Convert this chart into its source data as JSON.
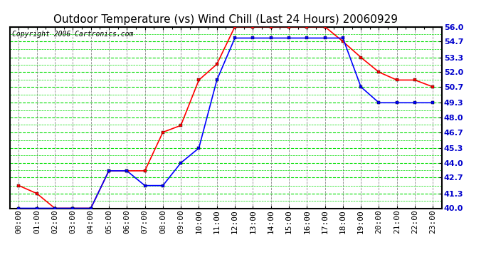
{
  "title": "Outdoor Temperature (vs) Wind Chill (Last 24 Hours) 20060929",
  "copyright": "Copyright 2006 Cartronics.com",
  "x_labels": [
    "00:00",
    "01:00",
    "02:00",
    "03:00",
    "04:00",
    "05:00",
    "06:00",
    "07:00",
    "08:00",
    "09:00",
    "10:00",
    "11:00",
    "12:00",
    "13:00",
    "14:00",
    "15:00",
    "16:00",
    "17:00",
    "18:00",
    "19:00",
    "20:00",
    "21:00",
    "22:00",
    "23:00"
  ],
  "red_data": [
    42.0,
    41.3,
    40.0,
    40.0,
    40.0,
    43.3,
    43.3,
    43.3,
    46.7,
    47.3,
    51.3,
    52.7,
    56.0,
    56.0,
    56.0,
    56.0,
    56.0,
    56.0,
    54.7,
    53.3,
    52.0,
    51.3,
    51.3,
    50.7
  ],
  "blue_data": [
    40.0,
    40.0,
    40.0,
    40.0,
    40.0,
    43.3,
    43.3,
    42.0,
    42.0,
    44.0,
    45.3,
    51.3,
    55.0,
    55.0,
    55.0,
    55.0,
    55.0,
    55.0,
    55.0,
    50.7,
    49.3,
    49.3,
    49.3,
    49.3
  ],
  "ylim_min": 40.0,
  "ylim_max": 56.0,
  "yticks": [
    40.0,
    41.3,
    42.7,
    44.0,
    45.3,
    46.7,
    48.0,
    49.3,
    50.7,
    52.0,
    53.3,
    54.7,
    56.0
  ],
  "bg_color": "#ffffff",
  "plot_bg_color": "#ffffff",
  "grid_h_color": "#00dd00",
  "grid_v_color": "#888888",
  "red_color": "#ff0000",
  "blue_color": "#0000ff",
  "title_color": "#000000",
  "marker_size": 3.5,
  "title_fontsize": 11,
  "tick_fontsize": 8,
  "copyright_fontsize": 7
}
